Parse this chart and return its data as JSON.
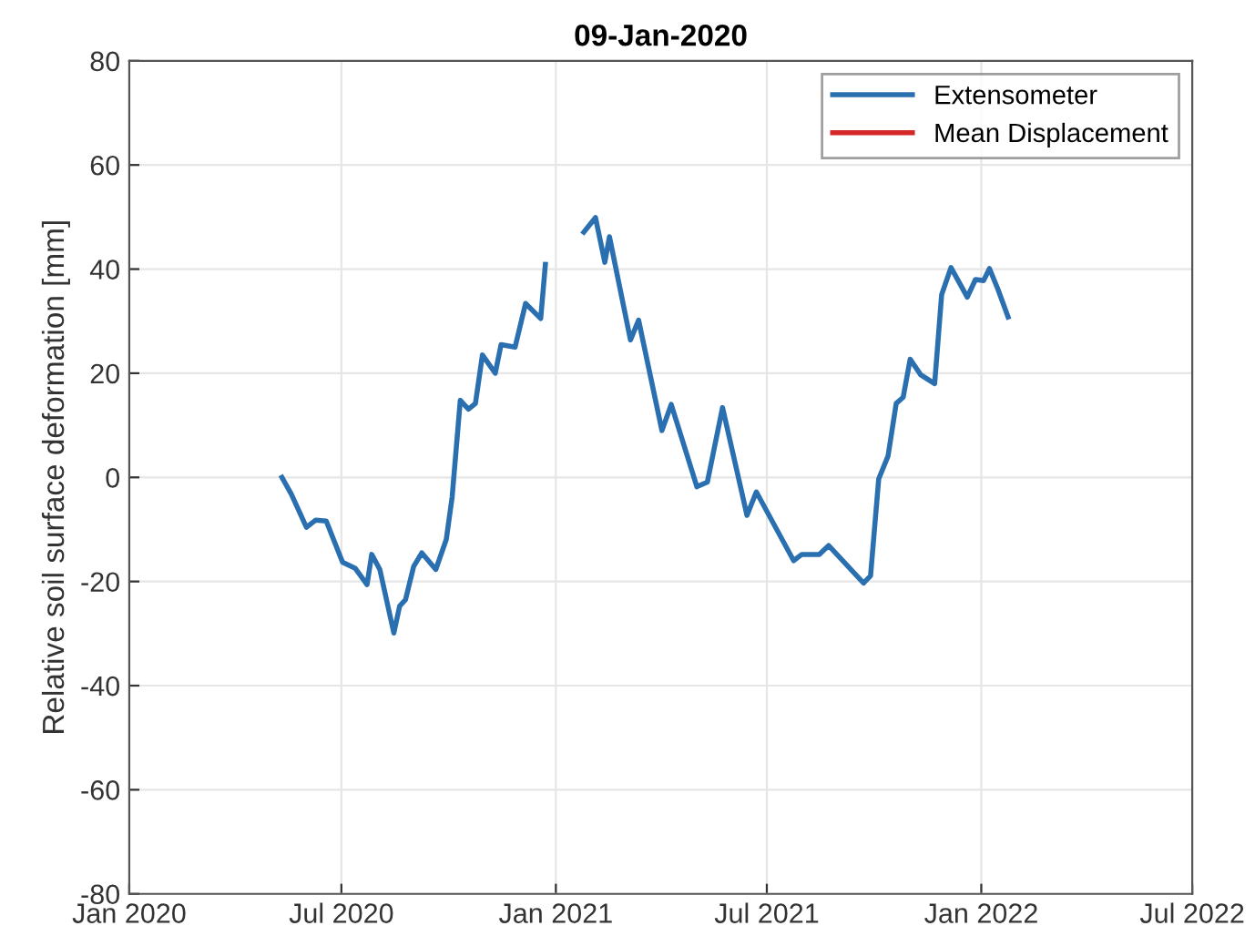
{
  "chart_data": {
    "type": "line",
    "title": "09-Jan-2020",
    "ylabel": "Relative soil surface deformation [mm]",
    "xlim": [
      "2020-01-01",
      "2022-07-01"
    ],
    "xticks": [
      {
        "value": "2020-01-01",
        "label": "Jan 2020"
      },
      {
        "value": "2020-07-01",
        "label": "Jul 2020"
      },
      {
        "value": "2021-01-01",
        "label": "Jan 2021"
      },
      {
        "value": "2021-07-01",
        "label": "Jul 2021"
      },
      {
        "value": "2022-01-01",
        "label": "Jan 2022"
      },
      {
        "value": "2022-07-01",
        "label": "Jul 2022"
      }
    ],
    "ylim": [
      -80,
      80
    ],
    "yticks": [
      -80,
      -60,
      -40,
      -20,
      0,
      20,
      40,
      60,
      80
    ],
    "grid": true,
    "legend": "top right",
    "marker": "none",
    "line_style": "solid",
    "series": [
      {
        "name": "Extensometer",
        "color": "#2a6fb0",
        "x": [
          "2020-05-11",
          "2020-05-19",
          "2020-06-01",
          "2020-06-09",
          "2020-06-18",
          "2020-07-02",
          "2020-07-13",
          "2020-07-23",
          "2020-07-27",
          "2020-08-03",
          "2020-08-15",
          "2020-08-20",
          "2020-08-25",
          "2020-09-01",
          "2020-09-08",
          "2020-09-20",
          "2020-09-29",
          "2020-10-04",
          "2020-10-11",
          "2020-10-18",
          "2020-10-24",
          "2020-10-30",
          "2020-11-10",
          "2020-11-15",
          "2020-11-27",
          "2020-12-06",
          "2020-12-19",
          "2020-12-23",
          "2021-01-10",
          "2021-01-25",
          "2021-02-04",
          "2021-02-12",
          "2021-02-16",
          "2021-03-06",
          "2021-03-13",
          "2021-04-02",
          "2021-04-10",
          "2021-05-02",
          "2021-05-11",
          "2021-05-24",
          "2021-06-14",
          "2021-06-22",
          "2021-07-24",
          "2021-07-31",
          "2021-08-15",
          "2021-08-23",
          "2021-09-22",
          "2021-09-28",
          "2021-10-05",
          "2021-10-13",
          "2021-10-20",
          "2021-10-26",
          "2021-11-01",
          "2021-11-10",
          "2021-11-22",
          "2021-11-28",
          "2021-12-06",
          "2021-12-20",
          "2021-12-27",
          "2022-01-03",
          "2022-01-08",
          "2022-01-15",
          "2022-01-24"
        ],
        "values": [
          0,
          -3.2,
          -9.6,
          -8.2,
          -8.4,
          -16.3,
          -17.5,
          -20.6,
          -14.8,
          -17.7,
          -29.9,
          -24.7,
          -23.5,
          -17.1,
          -14.5,
          -17.7,
          -11.9,
          -3.8,
          14.8,
          13.1,
          14.2,
          23.5,
          20,
          25.5,
          25,
          33.4,
          30.5,
          40.9,
          null,
          47.1,
          49.9,
          41.3,
          46.2,
          26.4,
          30.2,
          9,
          14,
          -1.8,
          -0.9,
          13.4,
          -7.3,
          -2.8,
          -16,
          -14.8,
          -14.8,
          -13.1,
          -20.3,
          -18.9,
          -0.3,
          4.1,
          14.2,
          15.4,
          22.7,
          19.7,
          18,
          35.1,
          40.3,
          34.6,
          38,
          37.8,
          40.1,
          36.3,
          30.8
        ]
      },
      {
        "name": "Mean Displacement",
        "color": "#d62728"
      }
    ]
  }
}
